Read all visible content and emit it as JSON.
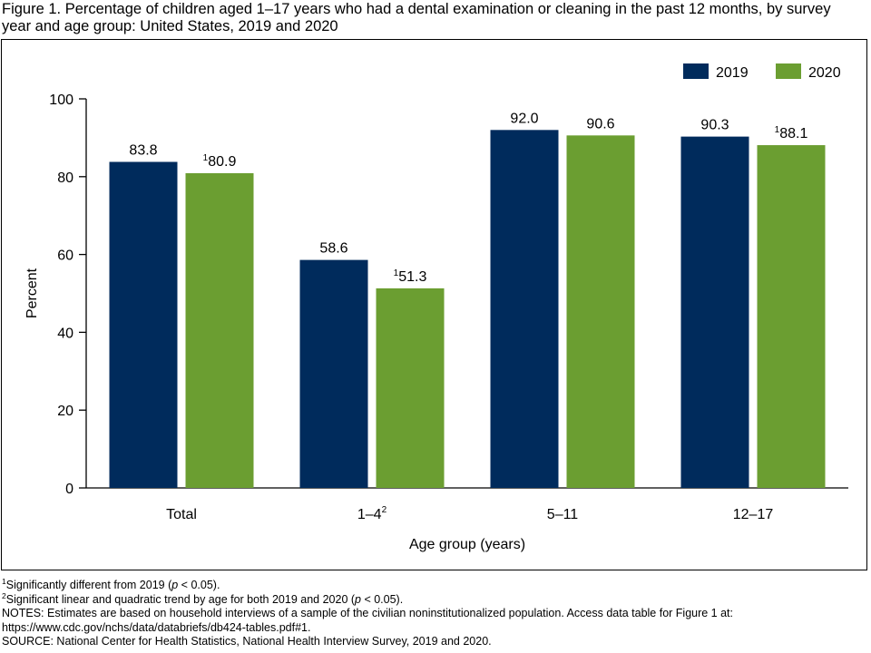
{
  "figure": {
    "title": "Figure 1. Percentage of children aged 1–17 years who had a dental examination or cleaning in the past 12 months, by survey year and age group: United States, 2019 and 2020"
  },
  "colors": {
    "series_2019": "#002b5c",
    "series_2020": "#6b9e31",
    "axis": "#000000"
  },
  "chart_data": {
    "type": "bar",
    "categories": [
      "Total",
      "1–4",
      "5–11",
      "12–17"
    ],
    "category_superscripts": [
      "",
      "2",
      "",
      ""
    ],
    "series": [
      {
        "name": "2019",
        "values": [
          83.8,
          58.6,
          92.0,
          90.3
        ],
        "labels": [
          "83.8",
          "58.6",
          "92.0",
          "90.3"
        ],
        "label_superscripts": [
          "",
          "",
          "",
          ""
        ]
      },
      {
        "name": "2020",
        "values": [
          80.9,
          51.3,
          90.6,
          88.1
        ],
        "labels": [
          "80.9",
          "51.3",
          "90.6",
          "88.1"
        ],
        "label_superscripts": [
          "1",
          "1",
          "",
          "1"
        ]
      }
    ],
    "xlabel": "Age group (years)",
    "ylabel": "Percent",
    "ylim": [
      0,
      100
    ],
    "yticks": [
      0,
      20,
      40,
      60,
      80,
      100
    ],
    "ytick_labels": [
      "0",
      "20",
      "40",
      "60",
      "80",
      "100"
    ],
    "grid": false,
    "legend_position": "top-right"
  },
  "footnotes": {
    "fn1": {
      "sup": "1",
      "before": "Significantly different from 2019 (",
      "italic": "p",
      "after": " < 0.05)."
    },
    "fn2": {
      "sup": "2",
      "before": "Significant linear and quadratic trend by age for both 2019 and 2020 (",
      "italic": "p",
      "after": " < 0.05)."
    },
    "notes_line1": "NOTES: Estimates are based on household interviews of a sample of the civilian noninstitutionalized population. Access data table for Figure 1 at:",
    "notes_line2": "https://www.cdc.gov/nchs/data/databriefs/db424-tables.pdf#1.",
    "source": "SOURCE: National Center for Health Statistics, National Health Interview Survey, 2019 and 2020."
  }
}
